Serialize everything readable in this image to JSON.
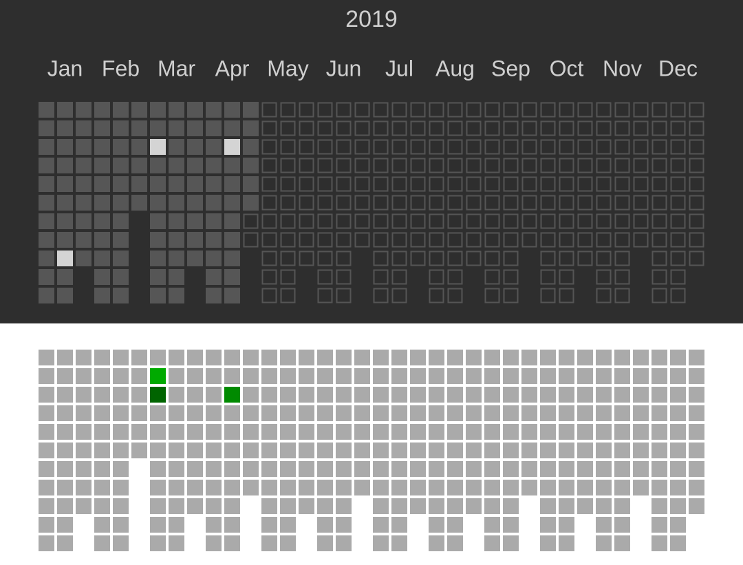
{
  "header": {
    "title": "2019"
  },
  "months": [
    {
      "name": "Jan",
      "days": 31,
      "past": 31
    },
    {
      "name": "Feb",
      "days": 28,
      "past": 28
    },
    {
      "name": "Mar",
      "days": 31,
      "past": 31
    },
    {
      "name": "Apr",
      "days": 30,
      "past": 28
    },
    {
      "name": "May",
      "days": 31,
      "past": 0
    },
    {
      "name": "Jun",
      "days": 30,
      "past": 0
    },
    {
      "name": "Jul",
      "days": 31,
      "past": 0
    },
    {
      "name": "Aug",
      "days": 31,
      "past": 0
    },
    {
      "name": "Sep",
      "days": 30,
      "past": 0
    },
    {
      "name": "Oct",
      "days": 31,
      "past": 0
    },
    {
      "name": "Nov",
      "days": 30,
      "past": 0
    },
    {
      "name": "Dec",
      "days": 31,
      "past": 0
    }
  ],
  "top_highlights": [
    {
      "month": 0,
      "day": 20
    },
    {
      "month": 2,
      "day": 3
    },
    {
      "month": 3,
      "day": 14
    }
  ],
  "bottom_marks": [
    {
      "month": 2,
      "day": 2,
      "color": "#00aa00"
    },
    {
      "month": 2,
      "day": 3,
      "color": "#006400"
    },
    {
      "month": 3,
      "day": 14,
      "color": "#008a00"
    }
  ]
}
